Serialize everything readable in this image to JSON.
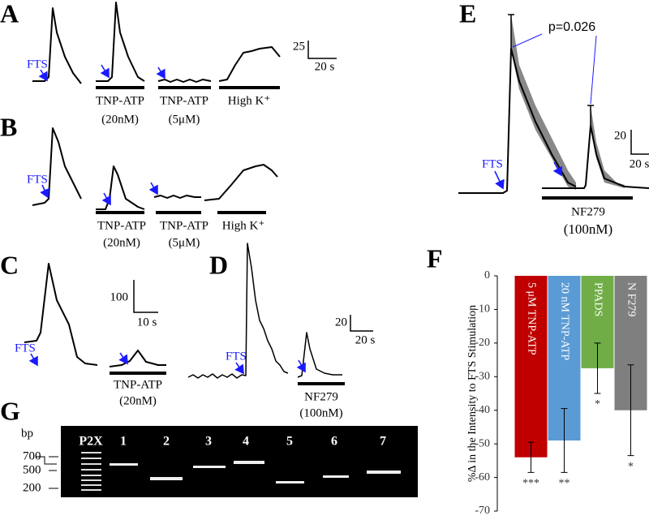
{
  "panel_a": {
    "label": "A",
    "stimulus": "FTS",
    "scale_y": "25",
    "scale_x": "20 s",
    "conditions": [
      {
        "drug": "TNP-ATP",
        "dose": "(20nM)"
      },
      {
        "drug": "TNP-ATP",
        "dose": "(5μM)"
      },
      {
        "drug": "High K⁺"
      }
    ]
  },
  "panel_b": {
    "label": "B",
    "stimulus": "FTS",
    "conditions": [
      {
        "drug": "TNP-ATP",
        "dose": "(20nM)"
      },
      {
        "drug": "TNP-ATP",
        "dose": "(5μM)"
      },
      {
        "drug": "High K⁺"
      }
    ]
  },
  "panel_c": {
    "label": "C",
    "stimulus": "FTS",
    "scale_y": "100",
    "scale_x": "10 s",
    "drug": "TNP-ATP",
    "dose": "(20nM)"
  },
  "panel_d": {
    "label": "D",
    "stimulus": "FTS",
    "scale_y": "20",
    "scale_x": "20 s",
    "drug": "NF279",
    "dose": "(100nM)"
  },
  "panel_e": {
    "label": "E",
    "p_value": "p=0.026",
    "stimulus": "FTS",
    "scale_y": "20",
    "scale_x": "20 s",
    "drug": "NF279",
    "dose": "(100nM)"
  },
  "panel_g": {
    "label": "G",
    "unit": "bp",
    "markers": [
      "700",
      "500",
      "200"
    ],
    "lanes": [
      "P2X",
      "1",
      "2",
      "3",
      "4",
      "5",
      "6",
      "7"
    ]
  },
  "chart_data": {
    "type": "bar",
    "panel_label": "F",
    "y_label": "%Δ in the Intensity to FTS Stimulation",
    "categories": [
      "5 μM TNP-ATP",
      "20 nM TNP-ATP",
      "PPADS",
      "N F279"
    ],
    "values": [
      -54,
      -49,
      -27.5,
      -40
    ],
    "errors": [
      4.5,
      9.5,
      7.5,
      13.5
    ],
    "annotations": [
      "***",
      "**",
      "*",
      "*"
    ],
    "colors": [
      "#c00000",
      "#5b9bd5",
      "#70ad47",
      "#7f7f7f"
    ],
    "ylim": [
      -70,
      0
    ],
    "yticks": [
      0,
      -10,
      -20,
      -30,
      -40,
      -50,
      -60,
      -70
    ]
  }
}
